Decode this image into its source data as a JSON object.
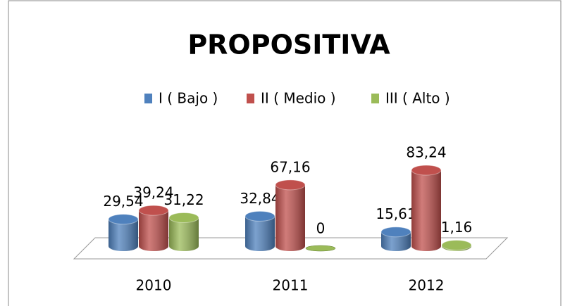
{
  "chart_data": {
    "type": "bar3d",
    "title": "PROPOSITIVA",
    "categories": [
      "2010",
      "2011",
      "2012"
    ],
    "series": [
      {
        "name": "I ( Bajo )",
        "color": "#4f81bd",
        "values": [
          29.54,
          32.84,
          15.61
        ],
        "value_labels": [
          "29,54",
          "32,84",
          "15,61"
        ]
      },
      {
        "name": "II ( Medio )",
        "color": "#c0504d",
        "values": [
          39.24,
          67.16,
          83.24
        ],
        "value_labels": [
          "39,24",
          "67,16",
          "83,24"
        ]
      },
      {
        "name": "III ( Alto )",
        "color": "#9bbb59",
        "values": [
          31.22,
          0,
          1.16
        ],
        "value_labels": [
          "31,22",
          "0",
          "1,16"
        ]
      }
    ],
    "legend": "top"
  }
}
